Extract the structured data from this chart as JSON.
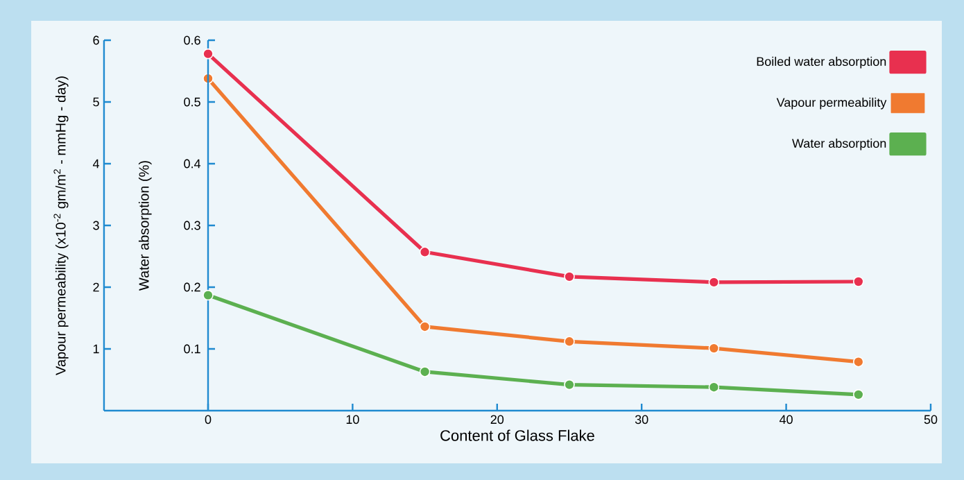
{
  "chart_data": {
    "type": "line",
    "xlabel": "Content of Glass Flake",
    "ylabel": "Water absorption (%)",
    "y2label": "Vapour permeability (x10$^{-2}$ gm/m$^{2}$ - mmHg - day)",
    "x": [
      0,
      15,
      25,
      35,
      45
    ],
    "xlim": [
      -7.2,
      50
    ],
    "xticks": [
      0,
      10,
      20,
      30,
      40,
      50
    ],
    "ylim": [
      0,
      0.6
    ],
    "yticks": [
      0.1,
      0.2,
      0.3,
      0.4,
      0.5,
      0.6
    ],
    "y2lim": [
      0,
      6
    ],
    "y2ticks": [
      1,
      2,
      3,
      4,
      5,
      6
    ],
    "legend": "top right",
    "marker": "circle",
    "line_style": "solid",
    "grid": false,
    "series": [
      {
        "name": "Boiled water absorption",
        "color": "#e8304f",
        "values": [
          0.578,
          0.257,
          0.217,
          0.208,
          0.209
        ]
      },
      {
        "name": "Vapour permeability",
        "color": "#f07a30",
        "axis": "y2",
        "values": [
          5.38,
          1.36,
          1.12,
          1.01,
          0.79
        ]
      },
      {
        "name": "Water absorption",
        "color": "#5cb050",
        "values": [
          0.187,
          0.063,
          0.042,
          0.038,
          0.026
        ]
      }
    ]
  }
}
